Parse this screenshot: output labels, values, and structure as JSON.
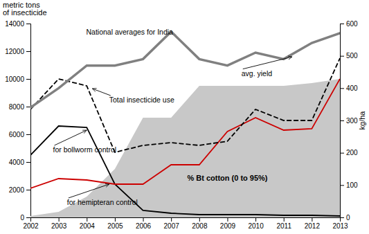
{
  "chart_data": {
    "type": "line",
    "ylabel": [
      "metric tons",
      "of insecticide"
    ],
    "y2label": "kg/ha",
    "annotations": [
      "National averages for India",
      "avg. yield",
      "Total insecticide use",
      "for bollworm control",
      "for hemipteran control",
      "% Bt cotton (0 to 95%)"
    ],
    "x": [
      2002,
      2003,
      2004,
      2005,
      2006,
      2007,
      2008,
      2009,
      2010,
      2011,
      2012,
      2013
    ],
    "xlim": [
      2002,
      2013
    ],
    "xticks": [
      2002,
      2003,
      2004,
      2005,
      2006,
      2007,
      2008,
      2009,
      2010,
      2011,
      2012,
      2013
    ],
    "ylim": [
      0,
      14000
    ],
    "yticks": [
      0,
      2000,
      4000,
      6000,
      8000,
      10000,
      12000,
      14000
    ],
    "y2lim": [
      0,
      600
    ],
    "y2ticks": [
      0,
      100,
      200,
      300,
      400,
      500,
      600
    ],
    "grid": false,
    "series": [
      {
        "type": "area",
        "color": "#c8c8c8",
        "values": [
          100,
          400,
          1500,
          3500,
          7200,
          7200,
          9500,
          9500,
          9500,
          9500,
          9700,
          10000
        ],
        "lower": [
          0,
          0,
          0,
          0,
          0,
          0,
          0,
          0,
          0,
          0,
          0,
          0
        ]
      },
      {
        "type": "line",
        "color": "#000000",
        "line_style": "solid",
        "values": [
          4500,
          6600,
          6500,
          2400,
          500,
          300,
          200,
          200,
          200,
          150,
          150,
          100
        ]
      },
      {
        "type": "line",
        "color": "#cc0000",
        "line_style": "solid",
        "values": [
          2100,
          2800,
          2700,
          2400,
          2400,
          3800,
          3800,
          6200,
          7200,
          6300,
          6400,
          10000
        ]
      },
      {
        "type": "line",
        "color": "#000000",
        "line_style": "dashed",
        "values": [
          7800,
          10000,
          9500,
          4700,
          5200,
          5400,
          5200,
          5500,
          7800,
          7000,
          7000,
          11500
        ]
      },
      {
        "type": "line",
        "color": "#808080",
        "line_style": "solid",
        "axis": "y2",
        "values": [
          340,
          400,
          470,
          470,
          490,
          575,
          490,
          470,
          510,
          490,
          540,
          570
        ]
      }
    ]
  }
}
